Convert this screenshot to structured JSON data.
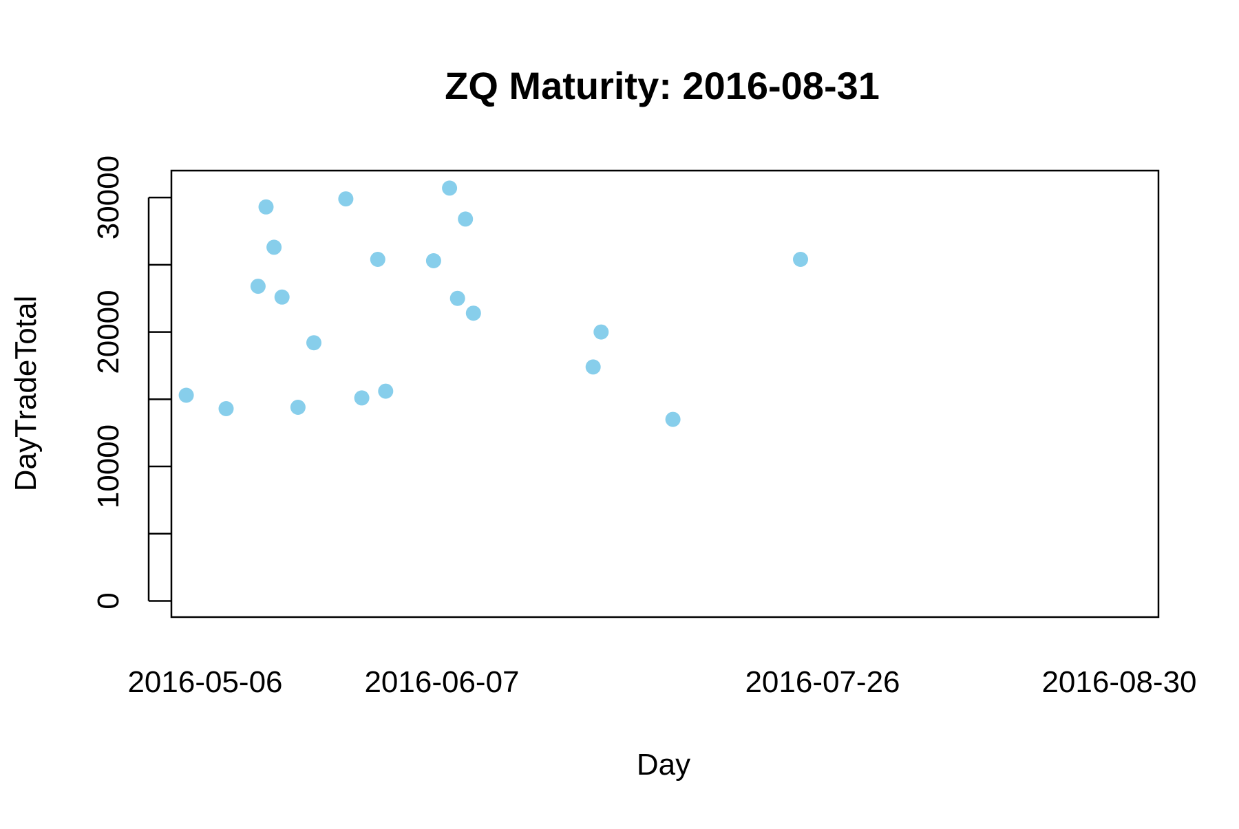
{
  "chart_data": {
    "type": "scatter",
    "title": "ZQ Maturity: 2016-08-31",
    "xlabel": "Day",
    "ylabel": "DayTradeTotal",
    "x_tick_labels": [
      "2016-05-06",
      "2016-06-07",
      "2016-07-26",
      "2016-08-30"
    ],
    "y_ticks": [
      0,
      5000,
      10000,
      15000,
      20000,
      25000,
      30000
    ],
    "y_tick_labels": [
      "0",
      "",
      "10000",
      "",
      "20000",
      "",
      "30000"
    ],
    "xlim": [
      "2016-05-03",
      "2016-09-02"
    ],
    "ylim": [
      -1200,
      32000
    ],
    "grid": false,
    "legend": "none",
    "marker_color": "#87CEEB",
    "points": [
      {
        "x": "2016-05-04",
        "y": 15300
      },
      {
        "x": "2016-05-09",
        "y": 14300
      },
      {
        "x": "2016-05-13",
        "y": 23400
      },
      {
        "x": "2016-05-14",
        "y": 29300
      },
      {
        "x": "2016-05-15",
        "y": 26300
      },
      {
        "x": "2016-05-16",
        "y": 22600
      },
      {
        "x": "2016-05-18",
        "y": 14400
      },
      {
        "x": "2016-05-20",
        "y": 19200
      },
      {
        "x": "2016-05-24",
        "y": 29900
      },
      {
        "x": "2016-05-26",
        "y": 15100
      },
      {
        "x": "2016-05-28",
        "y": 25400
      },
      {
        "x": "2016-05-29",
        "y": 15600
      },
      {
        "x": "2016-06-04",
        "y": 25300
      },
      {
        "x": "2016-06-06",
        "y": 30700
      },
      {
        "x": "2016-06-07",
        "y": 22500
      },
      {
        "x": "2016-06-08",
        "y": 28400
      },
      {
        "x": "2016-06-09",
        "y": 21400
      },
      {
        "x": "2016-06-24",
        "y": 17400
      },
      {
        "x": "2016-06-25",
        "y": 20000
      },
      {
        "x": "2016-07-04",
        "y": 13500
      },
      {
        "x": "2016-07-20",
        "y": 25400
      }
    ]
  }
}
